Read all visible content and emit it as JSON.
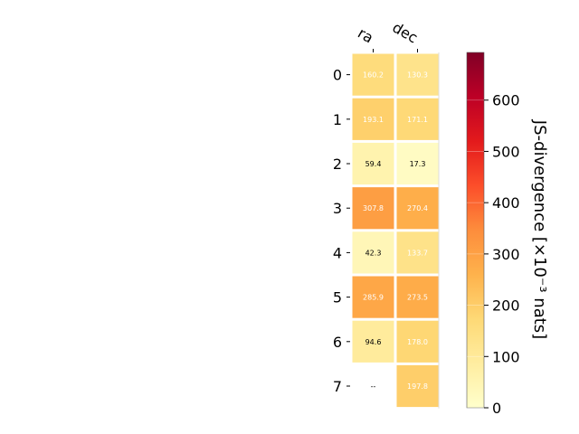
{
  "chart_data": {
    "type": "heatmap",
    "columns": [
      "ra",
      "dec"
    ],
    "rows": [
      "0",
      "1",
      "2",
      "3",
      "4",
      "5",
      "6",
      "7"
    ],
    "values": [
      [
        160.2,
        130.3
      ],
      [
        193.1,
        171.1
      ],
      [
        59.4,
        17.3
      ],
      [
        307.8,
        270.4
      ],
      [
        42.3,
        133.7
      ],
      [
        285.9,
        273.5
      ],
      [
        94.6,
        178.0
      ],
      [
        null,
        197.8
      ]
    ],
    "cell_labels": [
      [
        "160.2",
        "130.3"
      ],
      [
        "193.1",
        "171.1"
      ],
      [
        "59.4",
        "17.3"
      ],
      [
        "307.8",
        "270.4"
      ],
      [
        "42.3",
        "133.7"
      ],
      [
        "285.9",
        "273.5"
      ],
      [
        "94.6",
        "178.0"
      ],
      [
        "--",
        "197.8"
      ]
    ],
    "colorbar": {
      "label": "JS-divergence [×10⁻³ nats]",
      "range": [
        0,
        693
      ],
      "ticks": [
        0,
        100,
        200,
        300,
        400,
        500,
        600
      ],
      "colormap": "YlOrRd"
    },
    "grid": false
  }
}
